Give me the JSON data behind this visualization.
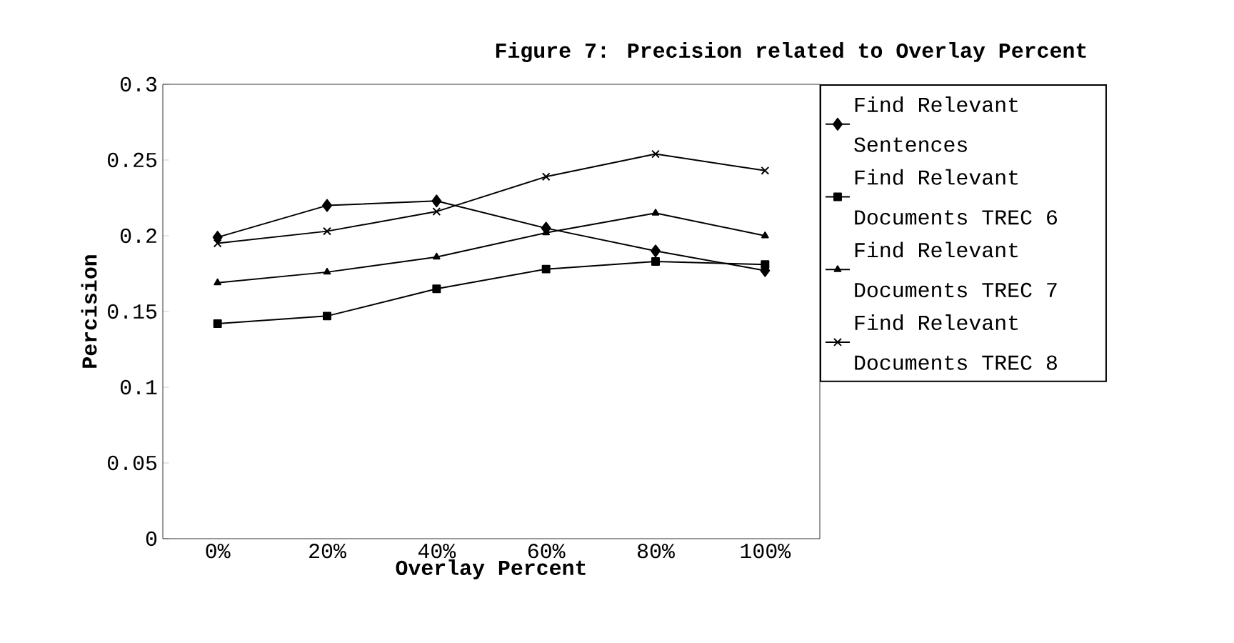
{
  "chart_data": {
    "type": "line",
    "title": "Figure 7: Precision related to Overlay Percent",
    "xlabel": "Overlay Percent",
    "ylabel": "Percision",
    "categories": [
      "0%",
      "20%",
      "40%",
      "60%",
      "80%",
      "100%"
    ],
    "series": [
      {
        "name": "Find Relevant Sentences",
        "color": "#000000",
        "marker": "diamond",
        "values": [
          0.199,
          0.22,
          0.223,
          0.205,
          0.19,
          0.177
        ]
      },
      {
        "name": "Find Relevant Documents TREC 6",
        "color": "#000000",
        "marker": "square",
        "values": [
          0.142,
          0.147,
          0.165,
          0.178,
          0.183,
          0.181
        ]
      },
      {
        "name": "Find Relevant Documents TREC 7",
        "color": "#000000",
        "marker": "triangle",
        "values": [
          0.169,
          0.176,
          0.186,
          0.202,
          0.215,
          0.2
        ]
      },
      {
        "name": "Find Relevant Documents TREC 8",
        "color": "#000000",
        "marker": "cross",
        "values": [
          0.195,
          0.203,
          0.216,
          0.239,
          0.254,
          0.243
        ]
      }
    ],
    "ylim": [
      0,
      0.3
    ],
    "yticks": [
      0,
      0.05,
      0.1,
      0.15,
      0.2,
      0.25,
      0.3
    ],
    "grid": false,
    "legend": "right",
    "line_style": "solid"
  }
}
